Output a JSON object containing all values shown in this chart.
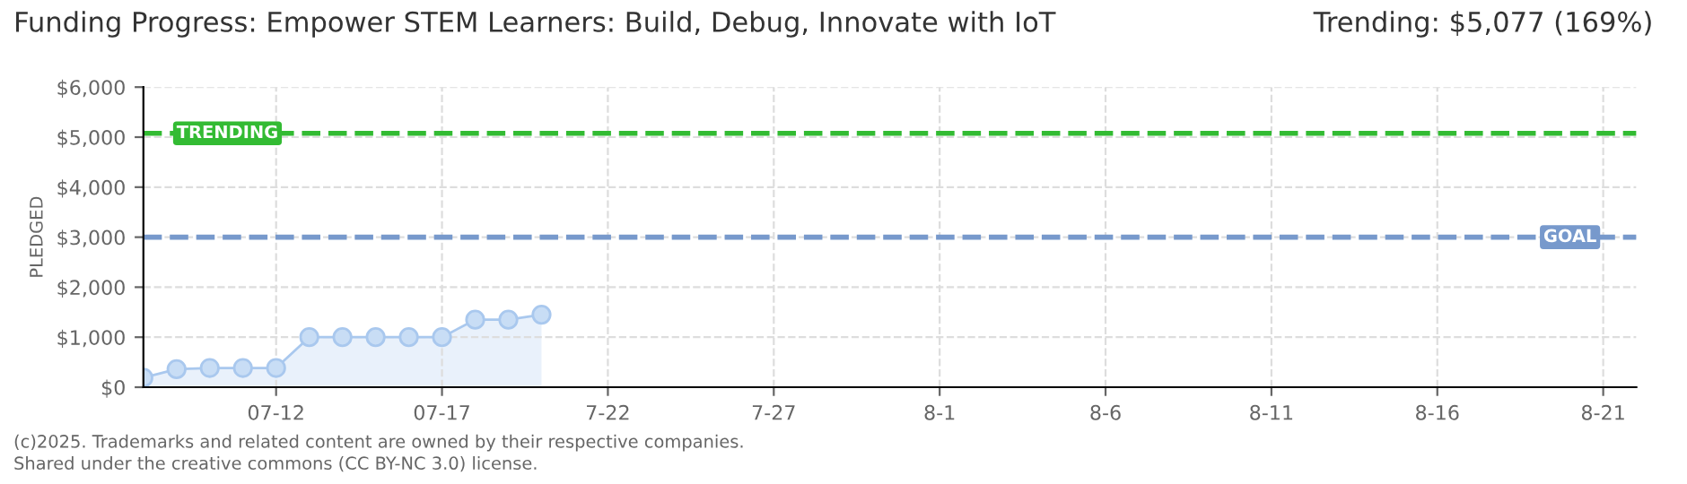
{
  "chart_data": {
    "type": "area",
    "title": "Funding Progress: Empower STEM Learners: Build, Debug, Innovate with IoT",
    "subtitle": "Trending: $5,077 (169%)",
    "ylabel": "PLEDGED",
    "x": [
      "2025-07-08",
      "2025-07-09",
      "2025-07-10",
      "2025-07-11",
      "2025-07-12",
      "2025-07-13",
      "2025-07-14",
      "2025-07-15",
      "2025-07-16",
      "2025-07-17",
      "2025-07-18",
      "2025-07-19",
      "2025-07-20"
    ],
    "series": [
      {
        "color": "#a9c8ee",
        "values": [
          190,
          360,
          385,
          385,
          385,
          1000,
          1000,
          1000,
          1000,
          1000,
          1350,
          1350,
          1450
        ]
      }
    ],
    "xlim": [
      "2025-07-08",
      "2025-08-22"
    ],
    "xticks": [
      {
        "value": "2025-07-12",
        "label": "07-12"
      },
      {
        "value": "2025-07-17",
        "label": "07-17"
      },
      {
        "value": "2025-07-22",
        "label": "7-22"
      },
      {
        "value": "2025-07-27",
        "label": "7-27"
      },
      {
        "value": "2025-08-01",
        "label": "8-1"
      },
      {
        "value": "2025-08-06",
        "label": "8-6"
      },
      {
        "value": "2025-08-11",
        "label": "8-11"
      },
      {
        "value": "2025-08-16",
        "label": "8-16"
      },
      {
        "value": "2025-08-21",
        "label": "8-21"
      }
    ],
    "ylim": [
      0,
      6000
    ],
    "yticks": [
      {
        "value": 0,
        "label": "$0"
      },
      {
        "value": 1000,
        "label": "$1,000"
      },
      {
        "value": 2000,
        "label": "$2,000"
      },
      {
        "value": 3000,
        "label": "$3,000"
      },
      {
        "value": 4000,
        "label": "$4,000"
      },
      {
        "value": 5000,
        "label": "$5,000"
      },
      {
        "value": 6000,
        "label": "$6,000"
      }
    ],
    "ref_lines": [
      {
        "axis": "y",
        "value": 5077,
        "label": "TRENDING",
        "color": "#33bb33",
        "line_style": "dashed"
      },
      {
        "axis": "y",
        "value": 3000,
        "label": "GOAL",
        "color": "#7799cc",
        "line_style": "dashed"
      }
    ],
    "grid": true,
    "marker": "circle",
    "legend": false,
    "annotations": [
      "(c)2025. Trademarks and related content are owned by their respective companies.",
      "Shared under the creative commons (CC BY-NC 3.0) license."
    ]
  }
}
